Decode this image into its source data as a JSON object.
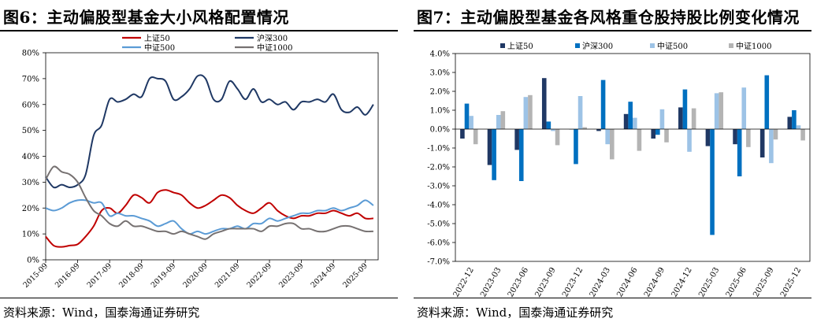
{
  "left_panel": {
    "title": "图6：主动偏股型基金大小风格配置情况",
    "source": "资料来源：Wind，国泰海通证券研究"
  },
  "right_panel": {
    "title": "图7：主动偏股型基金各风格重仓股持股比例变化情况",
    "source": "资料来源：Wind，国泰海通证券研究"
  },
  "chart_data": [
    {
      "type": "line",
      "title": "主动偏股型基金大小风格配置情况",
      "x": [
        "2015-09",
        "2015-12",
        "2016-03",
        "2016-06",
        "2016-09",
        "2016-12",
        "2017-03",
        "2017-06",
        "2017-09",
        "2017-12",
        "2018-03",
        "2018-06",
        "2018-09",
        "2018-12",
        "2019-03",
        "2019-06",
        "2019-09",
        "2019-12",
        "2020-03",
        "2020-06",
        "2020-09",
        "2020-12",
        "2021-03",
        "2021-06",
        "2021-09",
        "2021-12",
        "2022-03",
        "2022-06",
        "2022-09",
        "2022-12",
        "2023-03",
        "2023-06",
        "2023-09",
        "2023-12",
        "2024-03",
        "2024-06",
        "2024-09",
        "2024-12",
        "2025-03",
        "2025-06",
        "2025-09",
        "2025-12"
      ],
      "x_ticks": [
        "2015-09",
        "2016-09",
        "2017-09",
        "2018-09",
        "2019-09",
        "2020-09",
        "2021-09",
        "2022-09",
        "2023-09",
        "2024-09",
        "2025-09"
      ],
      "ylim": [
        0,
        80
      ],
      "y_ticks": [
        "0%",
        "10%",
        "20%",
        "30%",
        "40%",
        "50%",
        "60%",
        "70%",
        "80%"
      ],
      "legend": "top",
      "series": [
        {
          "name": "上证50",
          "color": "#c00000",
          "values": [
            9,
            5.5,
            5,
            5.5,
            6,
            9,
            13,
            19,
            20,
            18,
            21,
            25,
            24,
            22,
            26,
            27,
            26,
            25,
            22,
            20,
            21,
            23,
            25,
            24,
            21,
            19,
            18,
            20,
            22,
            19,
            17,
            16,
            17,
            17,
            18,
            18,
            19,
            18,
            17,
            18,
            16,
            16
          ]
        },
        {
          "name": "沪深300",
          "color": "#1f3864",
          "values": [
            32,
            28,
            29,
            28,
            29,
            33,
            48,
            52,
            62,
            61,
            62,
            64,
            63,
            70,
            70,
            69,
            62,
            63,
            66,
            71,
            70,
            62,
            62,
            69,
            66,
            62,
            66,
            61,
            62,
            60,
            61,
            58,
            61,
            61,
            62,
            61,
            64,
            58,
            57,
            59,
            56,
            60
          ]
        },
        {
          "name": "中证500",
          "color": "#5b9bd5",
          "values": [
            20,
            19,
            20,
            22,
            23,
            23,
            22,
            22,
            17,
            18,
            17,
            17,
            16,
            15,
            13,
            14,
            15,
            12,
            10,
            11,
            10,
            11,
            12,
            12,
            13,
            12,
            14,
            14,
            16,
            15,
            16,
            17,
            18,
            18,
            19,
            19,
            20,
            19,
            20,
            21,
            23,
            21
          ]
        },
        {
          "name": "中证1000",
          "color": "#767171",
          "values": [
            31,
            36,
            34,
            33,
            30,
            24,
            19,
            17,
            14,
            13,
            15,
            13,
            13,
            12,
            11,
            11,
            10,
            11,
            10,
            9,
            8,
            10,
            11,
            12,
            12,
            12,
            12,
            11,
            13,
            13,
            14,
            14,
            12,
            12,
            11,
            11,
            12,
            13,
            13,
            12,
            11,
            11
          ]
        }
      ]
    },
    {
      "type": "bar",
      "title": "主动偏股型基金各风格重仓股持股比例变化情况",
      "categories": [
        "2022-12",
        "2023-03",
        "2023-06",
        "2023-09",
        "2023-12",
        "2024-03",
        "2024-06",
        "2024-09",
        "2024-12",
        "2025-03",
        "2025-06",
        "2025-09",
        "2025-12"
      ],
      "ylim": [
        -7.0,
        4.0
      ],
      "y_ticks": [
        "-7.0%",
        "-6.0%",
        "-5.0%",
        "-4.0%",
        "-3.0%",
        "-2.0%",
        "-1.0%",
        "0.0%",
        "1.0%",
        "2.0%",
        "3.0%",
        "4.0%"
      ],
      "legend": "top",
      "series": [
        {
          "name": "上证50",
          "color": "#203864",
          "values": [
            -0.5,
            -1.9,
            -1.1,
            2.7,
            0.0,
            -0.1,
            0.8,
            -0.5,
            1.15,
            -0.9,
            -0.8,
            -1.5,
            0.65
          ]
        },
        {
          "name": "沪深300",
          "color": "#0070c0",
          "values": [
            1.35,
            -2.7,
            -2.75,
            0.4,
            -1.85,
            2.6,
            1.45,
            -0.3,
            2.1,
            -5.6,
            -2.5,
            2.85,
            1.0
          ]
        },
        {
          "name": "中证500",
          "color": "#9dc3e6",
          "values": [
            0.7,
            0.75,
            1.7,
            -0.1,
            1.75,
            -0.8,
            0.6,
            1.05,
            -1.2,
            1.9,
            2.2,
            -1.8,
            0.2
          ]
        },
        {
          "name": "中证1000",
          "color": "#b4b4b4",
          "values": [
            -0.8,
            0.95,
            1.8,
            -0.85,
            0.1,
            -1.6,
            -1.15,
            -0.7,
            1.1,
            1.95,
            -0.95,
            -0.55,
            -0.6
          ]
        }
      ]
    }
  ]
}
